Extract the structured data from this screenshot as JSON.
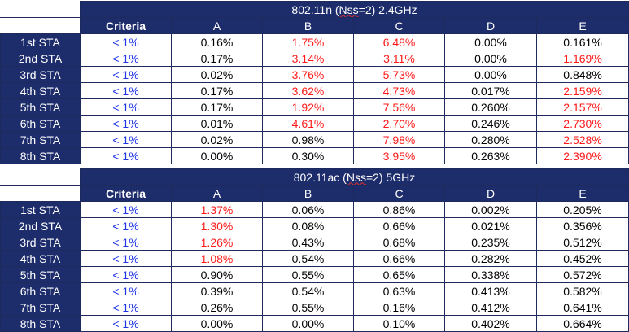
{
  "tables": [
    {
      "title_pre": "802.11n (",
      "title_u": "Nss",
      "title_post": "=2) 2.4GHz",
      "headers": [
        "Criteria",
        "A",
        "B",
        "C",
        "D",
        "E"
      ],
      "rows": [
        {
          "label": "1st STA",
          "criteria": "< 1%",
          "cells": [
            "0.16%",
            "1.75%",
            "6.48%",
            "0.00%",
            "0.161%"
          ],
          "fail": [
            false,
            true,
            true,
            false,
            false
          ]
        },
        {
          "label": "2nd STA",
          "criteria": "< 1%",
          "cells": [
            "0.17%",
            "3.14%",
            "3.11%",
            "0.00%",
            "1.169%"
          ],
          "fail": [
            false,
            true,
            true,
            false,
            true
          ]
        },
        {
          "label": "3rd STA",
          "criteria": "< 1%",
          "cells": [
            "0.02%",
            "3.76%",
            "5.73%",
            "0.00%",
            "0.848%"
          ],
          "fail": [
            false,
            true,
            true,
            false,
            false
          ]
        },
        {
          "label": "4th STA",
          "criteria": "< 1%",
          "cells": [
            "0.17%",
            "3.62%",
            "4.73%",
            "0.017%",
            "2.159%"
          ],
          "fail": [
            false,
            true,
            true,
            false,
            true
          ]
        },
        {
          "label": "5th STA",
          "criteria": "< 1%",
          "cells": [
            "0.17%",
            "1.92%",
            "7.56%",
            "0.260%",
            "2.157%"
          ],
          "fail": [
            false,
            true,
            true,
            false,
            true
          ]
        },
        {
          "label": "6th STA",
          "criteria": "< 1%",
          "cells": [
            "0.01%",
            "4.61%",
            "2.70%",
            "0.246%",
            "2.730%"
          ],
          "fail": [
            false,
            true,
            true,
            false,
            true
          ]
        },
        {
          "label": "7th STA",
          "criteria": "< 1%",
          "cells": [
            "0.02%",
            "0.98%",
            "7.98%",
            "0.280%",
            "2.528%"
          ],
          "fail": [
            false,
            false,
            true,
            false,
            true
          ]
        },
        {
          "label": "8th STA",
          "criteria": "< 1%",
          "cells": [
            "0.00%",
            "0.30%",
            "3.95%",
            "0.263%",
            "2.390%"
          ],
          "fail": [
            false,
            false,
            true,
            false,
            true
          ]
        }
      ]
    },
    {
      "title_pre": "802.11ac (",
      "title_u": "Nss",
      "title_post": "=2) 5GHz",
      "headers": [
        "Criteria",
        "A",
        "B",
        "C",
        "D",
        "E"
      ],
      "rows": [
        {
          "label": "1st STA",
          "criteria": "< 1%",
          "cells": [
            "1.37%",
            "0.06%",
            "0.86%",
            "0.002%",
            "0.205%"
          ],
          "fail": [
            true,
            false,
            false,
            false,
            false
          ]
        },
        {
          "label": "2nd STA",
          "criteria": "< 1%",
          "cells": [
            "1.30%",
            "0.08%",
            "0.66%",
            "0.021%",
            "0.356%"
          ],
          "fail": [
            true,
            false,
            false,
            false,
            false
          ]
        },
        {
          "label": "3rd STA",
          "criteria": "< 1%",
          "cells": [
            "1.26%",
            "0.43%",
            "0.68%",
            "0.235%",
            "0.512%"
          ],
          "fail": [
            true,
            false,
            false,
            false,
            false
          ]
        },
        {
          "label": "4th STA",
          "criteria": "< 1%",
          "cells": [
            "1.08%",
            "0.54%",
            "0.66%",
            "0.282%",
            "0.452%"
          ],
          "fail": [
            true,
            false,
            false,
            false,
            false
          ]
        },
        {
          "label": "5th STA",
          "criteria": "< 1%",
          "cells": [
            "0.90%",
            "0.55%",
            "0.65%",
            "0.338%",
            "0.572%"
          ],
          "fail": [
            false,
            false,
            false,
            false,
            false
          ]
        },
        {
          "label": "6th STA",
          "criteria": "< 1%",
          "cells": [
            "0.39%",
            "0.54%",
            "0.63%",
            "0.413%",
            "0.582%"
          ],
          "fail": [
            false,
            false,
            false,
            false,
            false
          ]
        },
        {
          "label": "7th STA",
          "criteria": "< 1%",
          "cells": [
            "0.26%",
            "0.55%",
            "0.16%",
            "0.412%",
            "0.641%"
          ],
          "fail": [
            false,
            false,
            false,
            false,
            false
          ]
        },
        {
          "label": "8th STA",
          "criteria": "< 1%",
          "cells": [
            "0.00%",
            "0.00%",
            "0.10%",
            "0.402%",
            "0.664%"
          ],
          "fail": [
            false,
            false,
            false,
            false,
            false
          ]
        }
      ]
    }
  ]
}
